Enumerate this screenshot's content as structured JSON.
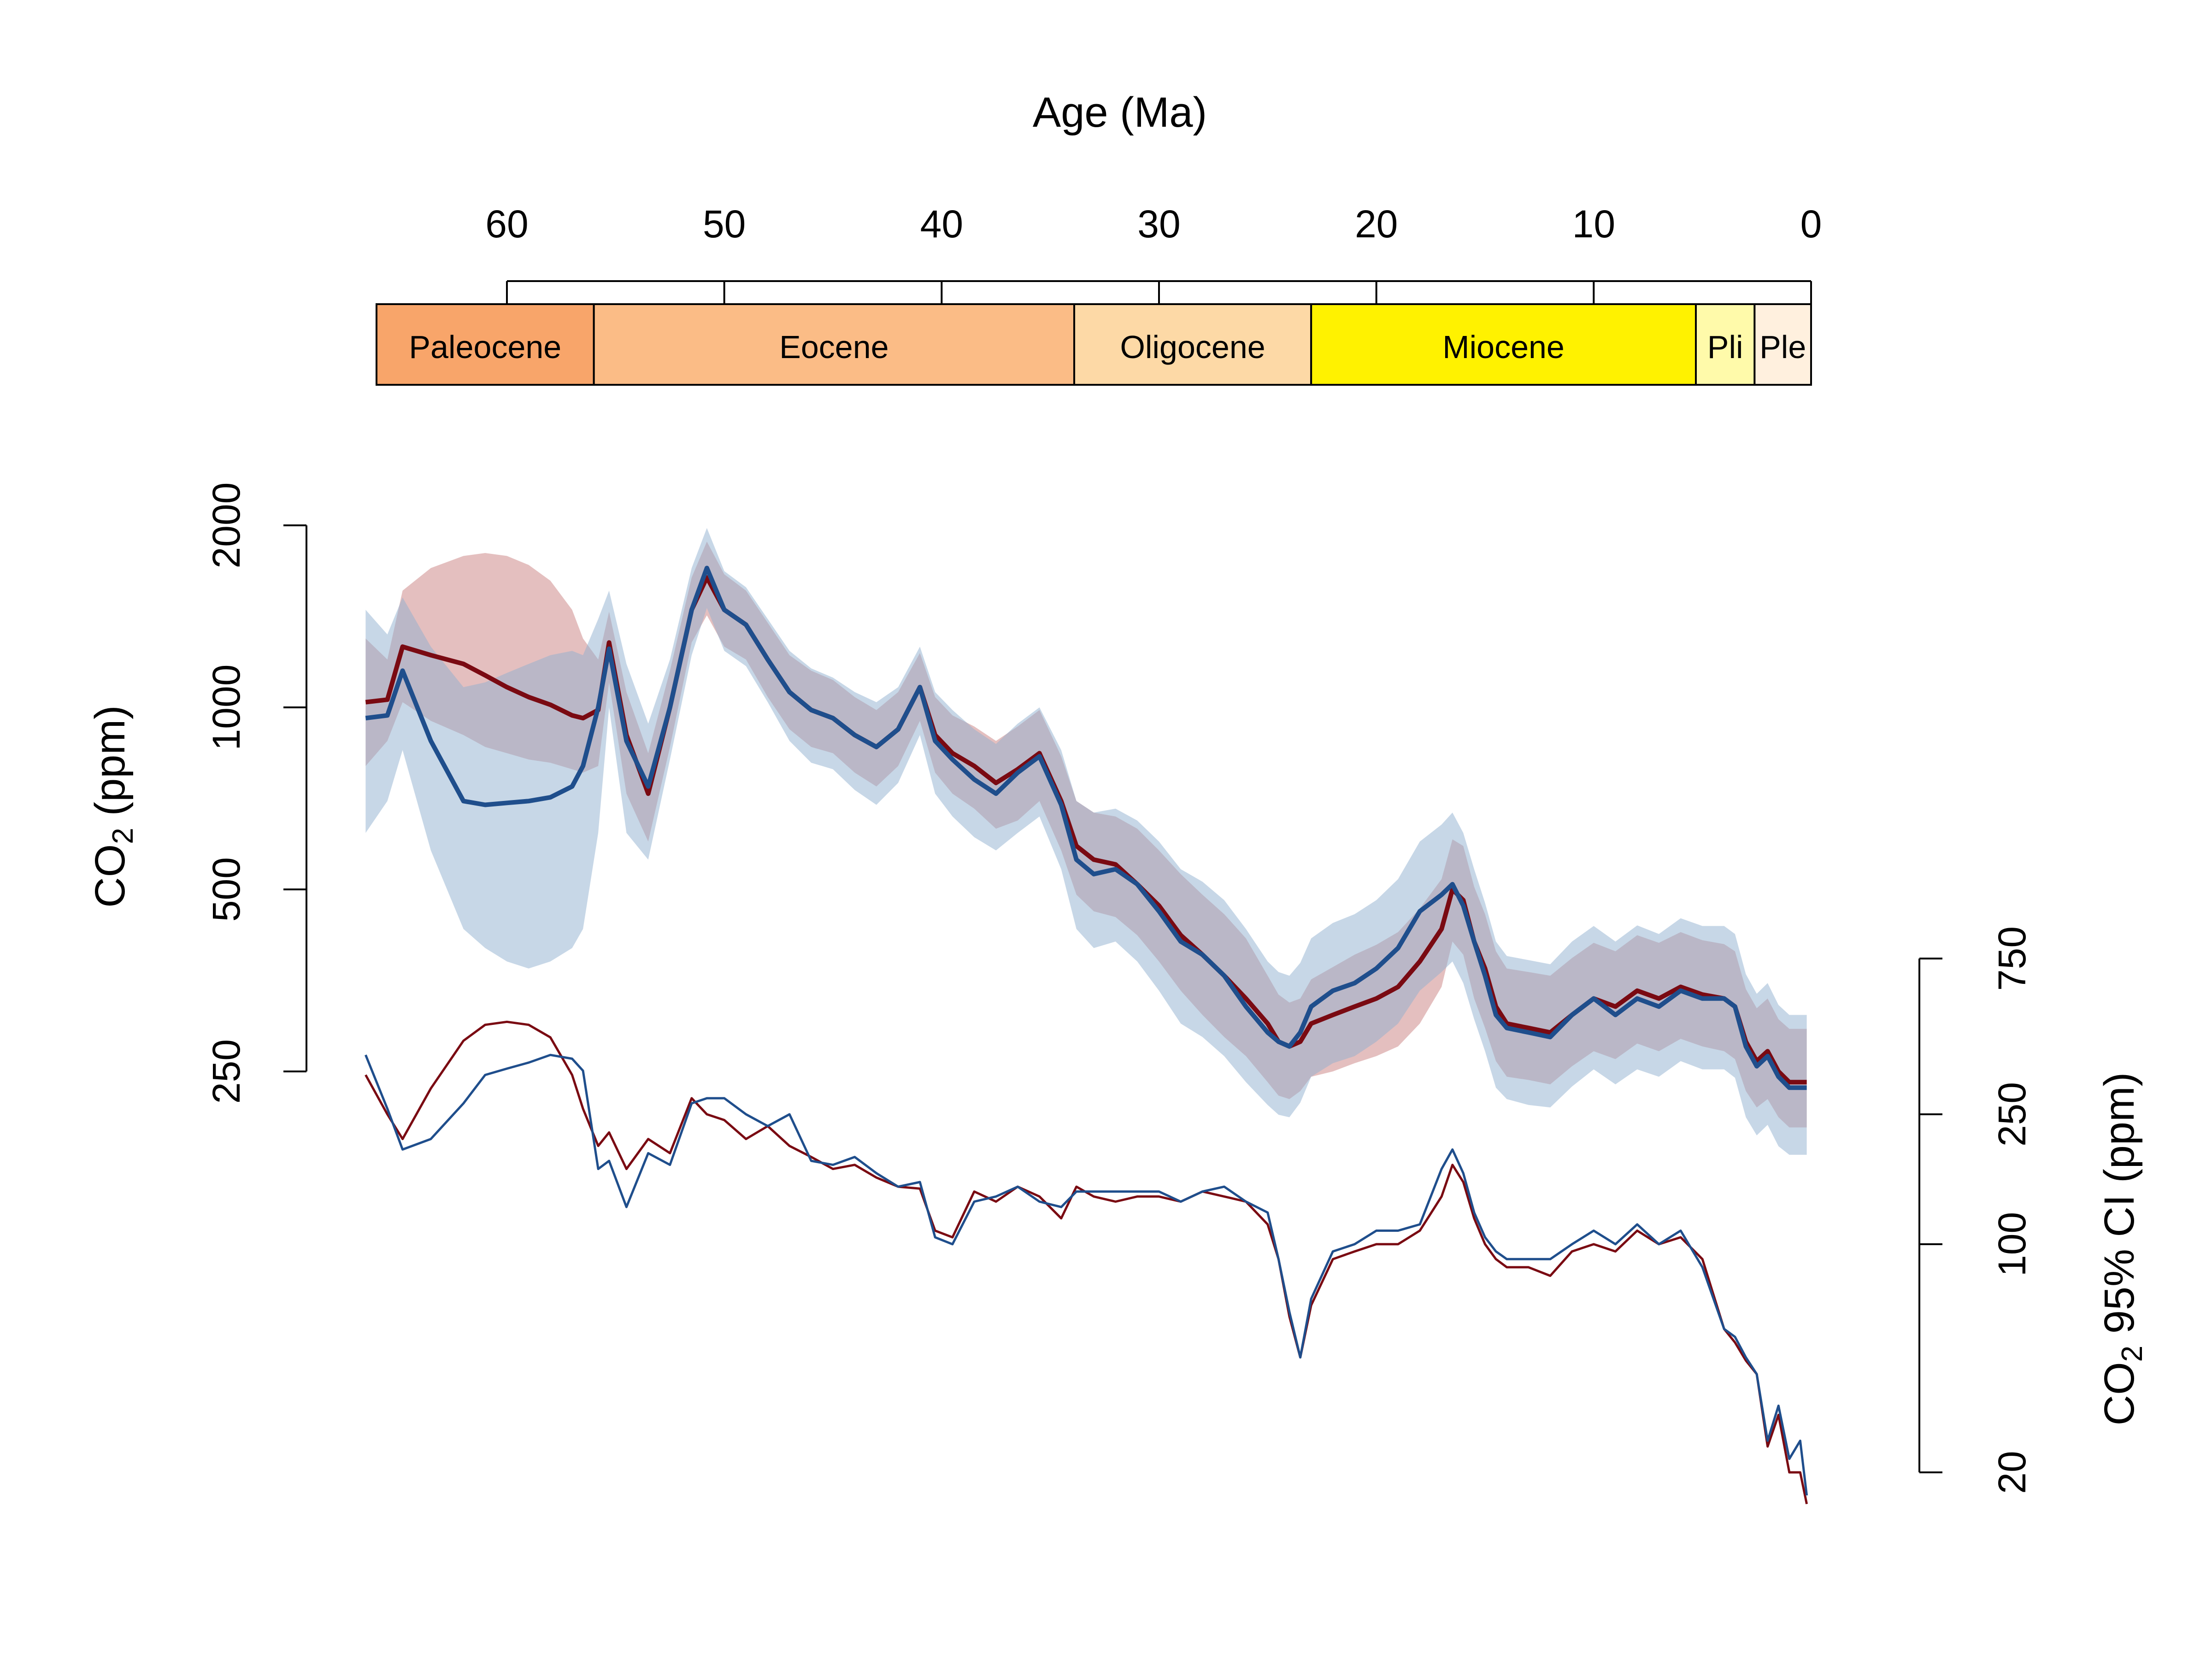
{
  "chart_data": {
    "type": "line",
    "top_axis": {
      "title": "Age (Ma)",
      "ticks": [
        60,
        50,
        40,
        30,
        20,
        10,
        0
      ],
      "xlim": [
        67,
        0
      ]
    },
    "epochs": [
      {
        "name": "Paleocene",
        "start": 66,
        "end": 56,
        "color": "#F8A56A"
      },
      {
        "name": "Eocene",
        "start": 56,
        "end": 33.9,
        "color": "#FBBC86"
      },
      {
        "name": "Oligocene",
        "start": 33.9,
        "end": 23,
        "color": "#FDD9A6"
      },
      {
        "name": "Miocene",
        "start": 23,
        "end": 5.3,
        "color": "#FFF200"
      },
      {
        "name": "Pli",
        "start": 5.3,
        "end": 2.6,
        "color": "#FFFAAA"
      },
      {
        "name": "Ple",
        "start": 2.6,
        "end": 0,
        "color": "#FFF0DE"
      }
    ],
    "left_axis": {
      "title_main": "CO",
      "title_sub": "2",
      "title_unit": " (ppm)",
      "scale": "log",
      "ticks": [
        250,
        500,
        1000,
        2000
      ],
      "ylim": [
        250,
        2000
      ]
    },
    "right_axis": {
      "title_main": "CO",
      "title_sub": "2",
      "title_unit": " 95% CI (ppm)",
      "scale": "log",
      "ticks": [
        20,
        100,
        250,
        750
      ],
      "ylim": [
        20,
        750
      ]
    },
    "series": [
      {
        "color": "#7A0A12",
        "band_color": "#C98080",
        "x": [
          66.5,
          65.5,
          64.8,
          63.5,
          62,
          61,
          60,
          59,
          58,
          57,
          56.5,
          55.8,
          55.3,
          54.5,
          53.5,
          52.5,
          51.5,
          50.8,
          50,
          49,
          48,
          47,
          46,
          45,
          44,
          43,
          42,
          41,
          40.3,
          39.5,
          38.5,
          37.5,
          36.5,
          35.5,
          34.5,
          33.8,
          33,
          32,
          31,
          30,
          29,
          28,
          27,
          26,
          25,
          24.5,
          24,
          23.5,
          23,
          22,
          21,
          20,
          19,
          18,
          17,
          16.5,
          16,
          15.5,
          15,
          14.5,
          14,
          13,
          12,
          11,
          10,
          9,
          8,
          7,
          6,
          5,
          4,
          3.5,
          3,
          2.5,
          2,
          1.5,
          1,
          0.5,
          0.2
        ],
        "y": [
          1020,
          1030,
          1260,
          1220,
          1180,
          1130,
          1080,
          1040,
          1010,
          970,
          960,
          990,
          1280,
          900,
          720,
          1000,
          1450,
          1640,
          1450,
          1370,
          1200,
          1060,
          990,
          960,
          900,
          860,
          920,
          1080,
          900,
          840,
          800,
          750,
          790,
          840,
          700,
          590,
          560,
          550,
          510,
          470,
          420,
          390,
          360,
          330,
          300,
          280,
          275,
          280,
          300,
          310,
          320,
          330,
          345,
          380,
          430,
          500,
          480,
          410,
          370,
          320,
          300,
          295,
          290,
          310,
          330,
          320,
          340,
          330,
          345,
          335,
          330,
          320,
          280,
          260,
          270,
          250,
          240,
          240,
          240
        ],
        "ci_lower": [
          800,
          880,
          1020,
          950,
          900,
          860,
          840,
          820,
          810,
          790,
          780,
          800,
          1100,
          720,
          600,
          860,
          1280,
          1420,
          1260,
          1200,
          1040,
          920,
          860,
          840,
          780,
          740,
          800,
          950,
          780,
          720,
          680,
          630,
          650,
          700,
          580,
          490,
          460,
          450,
          420,
          380,
          340,
          310,
          285,
          265,
          240,
          228,
          225,
          232,
          245,
          250,
          258,
          265,
          275,
          300,
          345,
          410,
          390,
          330,
          295,
          260,
          245,
          242,
          238,
          255,
          270,
          262,
          278,
          270,
          283,
          275,
          270,
          262,
          232,
          218,
          225,
          210,
          202,
          202,
          202
        ],
        "ci_upper": [
          1300,
          1200,
          1560,
          1700,
          1780,
          1800,
          1780,
          1720,
          1620,
          1450,
          1300,
          1200,
          1440,
          1060,
          840,
          1150,
          1640,
          1880,
          1660,
          1560,
          1380,
          1220,
          1150,
          1110,
          1040,
          990,
          1060,
          1230,
          1040,
          970,
          930,
          880,
          930,
          990,
          830,
          700,
          670,
          660,
          630,
          580,
          530,
          490,
          455,
          415,
          360,
          335,
          325,
          330,
          355,
          372,
          390,
          405,
          425,
          465,
          520,
          605,
          590,
          505,
          455,
          395,
          370,
          365,
          360,
          385,
          408,
          395,
          420,
          408,
          425,
          412,
          406,
          395,
          342,
          318,
          330,
          305,
          294,
          294,
          294
        ],
        "ci_width": [
          330,
          250,
          210,
          300,
          420,
          470,
          480,
          470,
          430,
          330,
          260,
          200,
          220,
          170,
          210,
          190,
          280,
          250,
          240,
          210,
          230,
          200,
          185,
          170,
          175,
          160,
          150,
          148,
          110,
          105,
          145,
          135,
          150,
          140,
          120,
          150,
          140,
          135,
          140,
          140,
          135,
          145,
          140,
          135,
          115,
          90,
          60,
          45,
          65,
          90,
          95,
          100,
          100,
          110,
          140,
          175,
          155,
          120,
          100,
          90,
          85,
          85,
          80,
          95,
          100,
          95,
          110,
          100,
          105,
          90,
          55,
          50,
          44,
          40,
          24,
          30,
          20,
          20,
          16
        ]
      },
      {
        "color": "#1F4E8C",
        "band_color": "#8FAFD0",
        "x": [
          66.5,
          65.5,
          64.8,
          63.5,
          62,
          61,
          60,
          59,
          58,
          57,
          56.5,
          55.8,
          55.3,
          54.5,
          53.5,
          52.5,
          51.5,
          50.8,
          50,
          49,
          48,
          47,
          46,
          45,
          44,
          43,
          42,
          41,
          40.3,
          39.5,
          38.5,
          37.5,
          36.5,
          35.5,
          34.5,
          33.8,
          33,
          32,
          31,
          30,
          29,
          28,
          27,
          26,
          25,
          24.5,
          24,
          23.5,
          23,
          22,
          21,
          20,
          19,
          18,
          17,
          16.5,
          16,
          15.5,
          15,
          14.5,
          14,
          13,
          12,
          11,
          10,
          9,
          8,
          7,
          6,
          5,
          4,
          3.5,
          3,
          2.5,
          2,
          1.5,
          1,
          0.5,
          0.2
        ],
        "y": [
          960,
          970,
          1150,
          880,
          700,
          690,
          695,
          700,
          710,
          740,
          800,
          1000,
          1250,
          880,
          740,
          1000,
          1450,
          1700,
          1450,
          1370,
          1200,
          1060,
          990,
          960,
          900,
          860,
          920,
          1080,
          880,
          820,
          760,
          720,
          780,
          830,
          690,
          560,
          530,
          540,
          510,
          460,
          410,
          390,
          360,
          320,
          290,
          280,
          275,
          290,
          320,
          340,
          350,
          370,
          400,
          460,
          490,
          510,
          470,
          410,
          360,
          310,
          295,
          290,
          285,
          310,
          330,
          310,
          330,
          320,
          340,
          330,
          330,
          320,
          275,
          255,
          265,
          245,
          235,
          235,
          235
        ],
        "ci_lower": [
          620,
          700,
          850,
          580,
          430,
          400,
          380,
          370,
          380,
          400,
          430,
          620,
          1000,
          620,
          560,
          820,
          1220,
          1460,
          1240,
          1170,
          1020,
          880,
          810,
          790,
          730,
          690,
          750,
          900,
          720,
          660,
          610,
          580,
          620,
          660,
          540,
          430,
          400,
          410,
          380,
          340,
          300,
          285,
          265,
          240,
          220,
          212,
          210,
          222,
          245,
          258,
          265,
          280,
          300,
          340,
          365,
          380,
          350,
          305,
          270,
          235,
          225,
          220,
          218,
          236,
          252,
          238,
          252,
          245,
          260,
          252,
          252,
          244,
          210,
          196,
          204,
          188,
          182,
          182,
          182
        ],
        "ci_upper": [
          1450,
          1320,
          1520,
          1260,
          1080,
          1100,
          1140,
          1180,
          1220,
          1240,
          1220,
          1400,
          1560,
          1180,
          940,
          1200,
          1700,
          1980,
          1680,
          1580,
          1400,
          1240,
          1160,
          1120,
          1060,
          1020,
          1080,
          1260,
          1060,
          990,
          920,
          870,
          940,
          1000,
          850,
          700,
          670,
          680,
          650,
          600,
          540,
          515,
          480,
          430,
          380,
          365,
          360,
          378,
          415,
          440,
          455,
          480,
          520,
          600,
          640,
          670,
          620,
          540,
          475,
          410,
          388,
          382,
          376,
          410,
          435,
          410,
          436,
          422,
          448,
          435,
          435,
          422,
          362,
          336,
          350,
          322,
          310,
          310,
          310
        ],
        "ci_width": [
          380,
          260,
          195,
          210,
          270,
          330,
          345,
          360,
          380,
          370,
          340,
          170,
          180,
          130,
          190,
          175,
          270,
          280,
          280,
          250,
          230,
          250,
          180,
          175,
          185,
          165,
          150,
          155,
          105,
          100,
          135,
          140,
          150,
          135,
          130,
          145,
          145,
          145,
          145,
          145,
          135,
          145,
          150,
          135,
          125,
          90,
          62,
          45,
          68,
          95,
          100,
          110,
          110,
          115,
          170,
          195,
          165,
          125,
          105,
          95,
          90,
          90,
          90,
          100,
          110,
          100,
          115,
          100,
          110,
          85,
          55,
          52,
          45,
          40,
          25,
          32,
          22,
          25,
          17
        ]
      }
    ]
  }
}
